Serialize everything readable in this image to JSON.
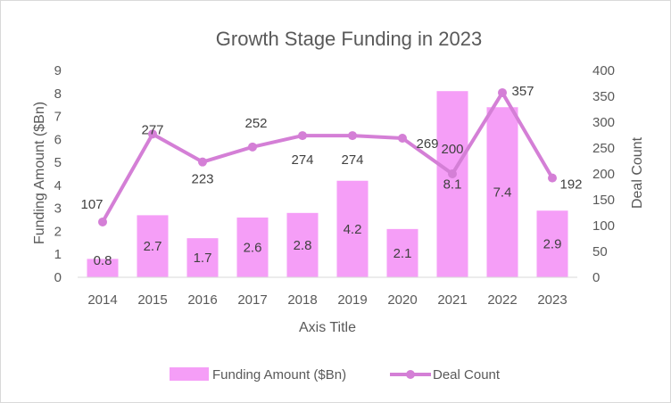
{
  "chart_data": {
    "type": "bar",
    "title": "Growth Stage Funding in 2023",
    "xlabel": "Axis Title",
    "ylabel": "Funding Amount ($Bn)",
    "y2label": "Deal Count",
    "categories": [
      "2014",
      "2015",
      "2016",
      "2017",
      "2018",
      "2019",
      "2020",
      "2021",
      "2022",
      "2023"
    ],
    "ylim": [
      0,
      9
    ],
    "y2lim": [
      0,
      400
    ],
    "yticks": [
      "0",
      "1",
      "2",
      "3",
      "4",
      "5",
      "6",
      "7",
      "8",
      "9"
    ],
    "y2ticks": [
      "0",
      "50",
      "100",
      "150",
      "200",
      "250",
      "300",
      "350",
      "400"
    ],
    "series": [
      {
        "name": "Funding Amount ($Bn)",
        "type": "bar",
        "axis": "left",
        "color": "#f59ef7",
        "values": [
          0.8,
          2.7,
          1.7,
          2.6,
          2.8,
          4.2,
          2.1,
          8.1,
          7.4,
          2.9
        ],
        "labels": [
          "0.8",
          "2.7",
          "1.7",
          "2.6",
          "2.8",
          "4.2",
          "2.1",
          "8.1",
          "7.4",
          "2.9"
        ]
      },
      {
        "name": "Deal Count",
        "type": "line",
        "axis": "right",
        "color": "#d47fd6",
        "values": [
          107,
          277,
          223,
          252,
          274,
          274,
          269,
          200,
          357,
          192
        ],
        "labels": [
          "107",
          "277",
          "223",
          "252",
          "274",
          "274",
          "269",
          "200",
          "357",
          "192"
        ]
      }
    ],
    "grid": false,
    "legend": "bottom"
  }
}
